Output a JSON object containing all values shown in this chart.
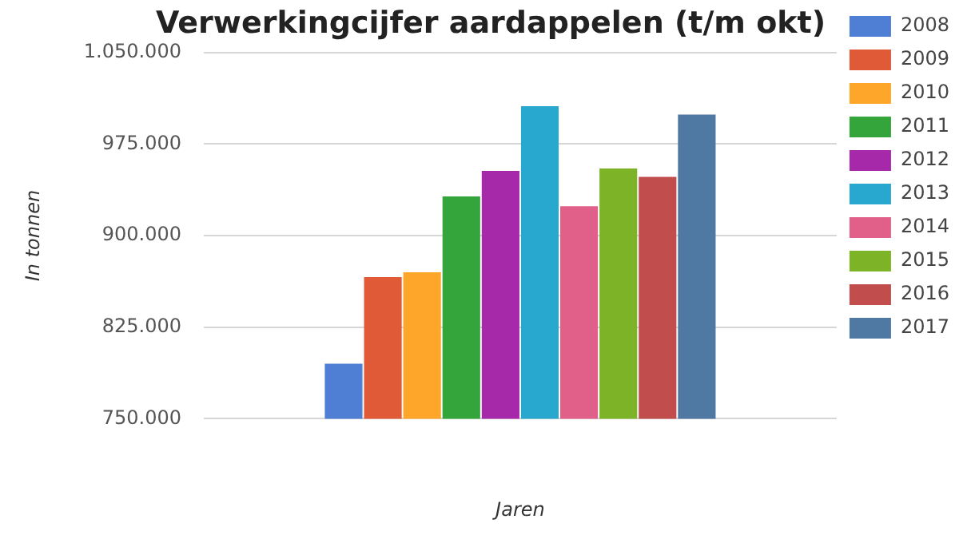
{
  "chart_data": {
    "type": "bar",
    "title": "Verwerkingcijfer aardappelen (t/m okt)",
    "xlabel": "Jaren",
    "ylabel": "In tonnen",
    "categories": [
      null
    ],
    "series": [
      {
        "name": "2008",
        "color": "#4e7fd4",
        "values": [
          795000
        ]
      },
      {
        "name": "2009",
        "color": "#e05a37",
        "values": [
          866000
        ]
      },
      {
        "name": "2010",
        "color": "#fea62a",
        "values": [
          870000
        ]
      },
      {
        "name": "2011",
        "color": "#34a53b",
        "values": [
          932000
        ]
      },
      {
        "name": "2012",
        "color": "#a529a8",
        "values": [
          953000
        ]
      },
      {
        "name": "2013",
        "color": "#29a8cf",
        "values": [
          1006000
        ]
      },
      {
        "name": "2014",
        "color": "#e0608a",
        "values": [
          924000
        ]
      },
      {
        "name": "2015",
        "color": "#7db427",
        "values": [
          955000
        ]
      },
      {
        "name": "2016",
        "color": "#c14e4c",
        "values": [
          948000
        ]
      },
      {
        "name": "2017",
        "color": "#4f79a3",
        "values": [
          999000
        ]
      }
    ],
    "ylim": [
      750000,
      1050000
    ],
    "yticks": [
      {
        "value": 750000,
        "label": "750.000"
      },
      {
        "value": 825000,
        "label": "825.000"
      },
      {
        "value": 900000,
        "label": "900.000"
      },
      {
        "value": 975000,
        "label": "975.000"
      },
      {
        "value": 1050000,
        "label": "1.050.000"
      }
    ],
    "grid": "y",
    "legend": "right"
  }
}
